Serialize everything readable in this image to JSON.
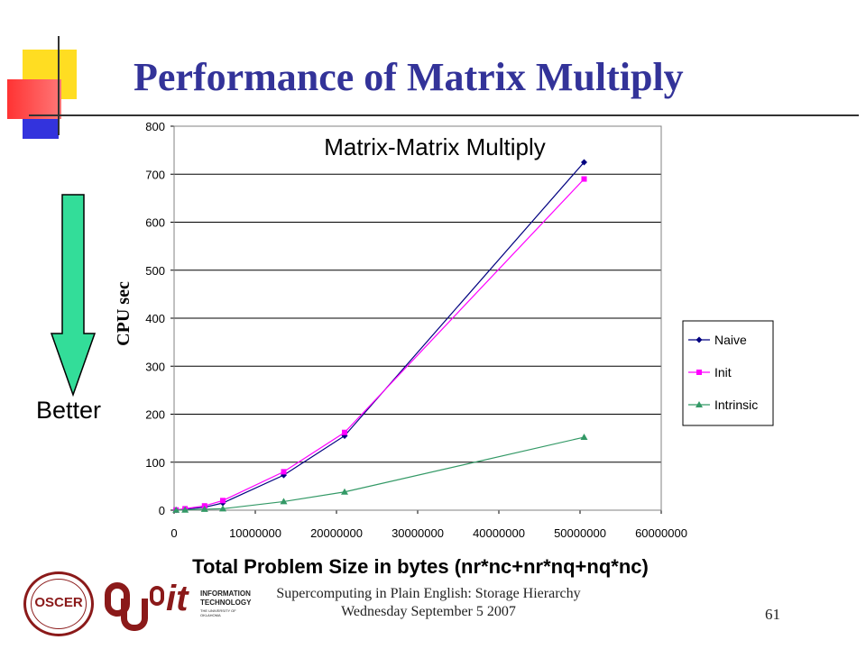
{
  "slide": {
    "title": "Performance of Matrix Multiply",
    "arrow_label": "Better",
    "footer_line1": "Supercomputing in Plain English: Storage Hierarchy",
    "footer_line2": "Wednesday September 5 2007",
    "page_number": "61"
  },
  "logos": {
    "oscer_text": "OSCER",
    "it_text": "it",
    "it_sub1": "INFORMATION",
    "it_sub2": "TECHNOLOGY",
    "it_sub3": "THE UNIVERSITY OF OKLAHOMA"
  },
  "colors": {
    "title": "#333399",
    "naive": "#000080",
    "init": "#FF00FF",
    "intrinsic": "#339966",
    "arrow": "#33DD99"
  },
  "chart_data": {
    "type": "line",
    "title": "Matrix-Matrix Multiply",
    "xlabel": "Total Problem Size in bytes (nr*nc+nr*nq+nq*nc)",
    "ylabel": "CPU sec",
    "xlim": [
      0,
      60000000
    ],
    "ylim": [
      0,
      800
    ],
    "xticks": [
      "0",
      "10000000",
      "20000000",
      "30000000",
      "40000000",
      "50000000",
      "60000000"
    ],
    "yticks": [
      "0",
      "100",
      "200",
      "300",
      "400",
      "500",
      "600",
      "700",
      "800"
    ],
    "grid": "horizontal",
    "legend_position": "right",
    "series": [
      {
        "name": "Naive",
        "color": "#000080",
        "marker": "diamond",
        "x": [
          240000,
          1350000,
          3750000,
          6000000,
          13500000,
          21000000,
          50500000
        ],
        "y": [
          0.5,
          2,
          6,
          15,
          73,
          155,
          725
        ]
      },
      {
        "name": "Init",
        "color": "#FF00FF",
        "marker": "square",
        "x": [
          240000,
          1350000,
          3750000,
          6000000,
          13500000,
          21000000,
          50500000
        ],
        "y": [
          0.5,
          3,
          9,
          20,
          80,
          162,
          690
        ]
      },
      {
        "name": "Intrinsic",
        "color": "#339966",
        "marker": "triangle",
        "x": [
          240000,
          1350000,
          3750000,
          6000000,
          13500000,
          21000000,
          50500000
        ],
        "y": [
          0.2,
          0.5,
          2,
          3,
          18,
          38,
          152
        ]
      }
    ]
  }
}
